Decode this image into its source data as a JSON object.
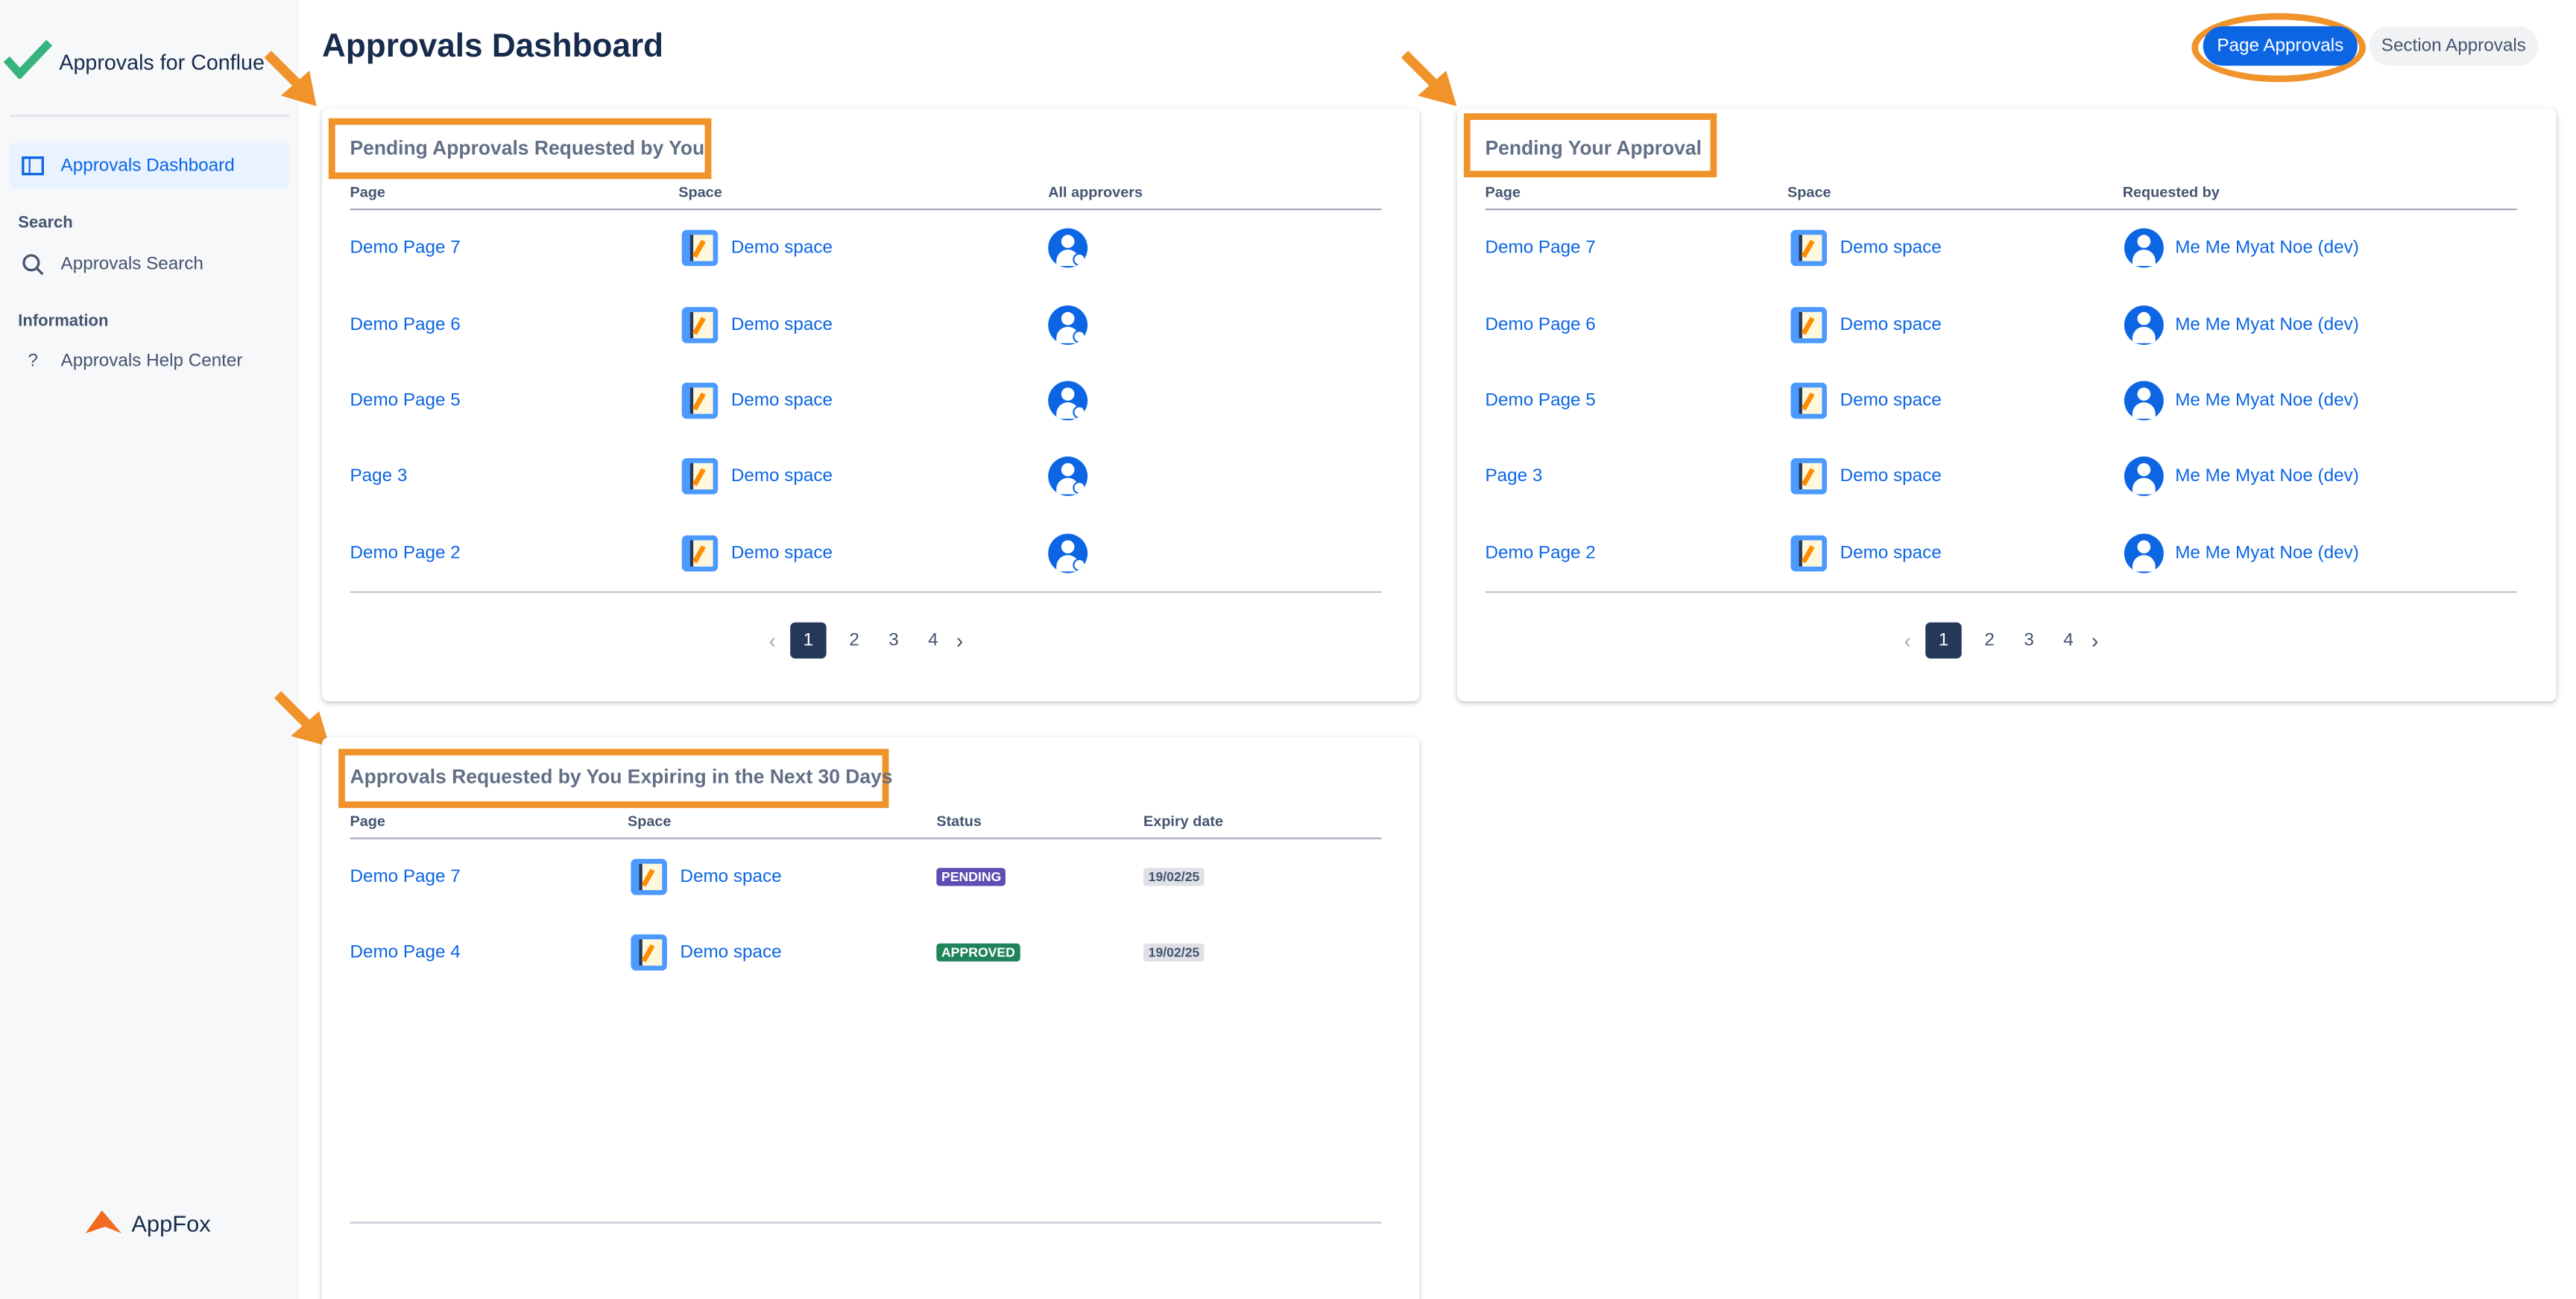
{
  "sidebar": {
    "app_name": "Approvals for Conflue",
    "nav": [
      {
        "label": "Approvals Dashboard"
      }
    ],
    "sections": [
      {
        "title": "Search",
        "items": [
          "Approvals Search"
        ]
      },
      {
        "title": "Information",
        "items": [
          "Approvals Help Center"
        ]
      }
    ],
    "footer": "AppFox"
  },
  "header": {
    "title": "Approvals Dashboard",
    "tabs": [
      "Page Approvals",
      "Section Approvals"
    ]
  },
  "panels": [
    {
      "title": "Pending Approvals Requested by You",
      "columns": [
        "Page",
        "Space",
        "All approvers"
      ],
      "rows": [
        [
          "Demo Page 7",
          "Demo space"
        ],
        [
          "Demo Page 6",
          "Demo space"
        ],
        [
          "Demo Page 5",
          "Demo space"
        ],
        [
          "Page 3",
          "Demo space"
        ],
        [
          "Demo Page 2",
          "Demo space"
        ]
      ],
      "pages": [
        1,
        2,
        3,
        4
      ]
    },
    {
      "title": "Pending Your Approval",
      "columns": [
        "Page",
        "Space",
        "Requested by"
      ],
      "rows": [
        [
          "Demo Page 7",
          "Demo space",
          "Me Me Myat Noe (dev)"
        ],
        [
          "Demo Page 6",
          "Demo space",
          "Me Me Myat Noe (dev)"
        ],
        [
          "Demo Page 5",
          "Demo space",
          "Me Me Myat Noe (dev)"
        ],
        [
          "Page 3",
          "Demo space",
          "Me Me Myat Noe (dev)"
        ],
        [
          "Demo Page 2",
          "Demo space",
          "Me Me Myat Noe (dev)"
        ]
      ],
      "pages": [
        1,
        2,
        3,
        4
      ]
    },
    {
      "title": "Approvals Requested by You Expiring in the Next 30 Days",
      "columns": [
        "Page",
        "Space",
        "Status",
        "Expiry date"
      ],
      "rows": [
        [
          "Demo Page 7",
          "Demo space",
          "PENDING",
          "19/02/25"
        ],
        [
          "Demo Page 4",
          "Demo space",
          "APPROVED",
          "19/02/25"
        ]
      ]
    }
  ]
}
